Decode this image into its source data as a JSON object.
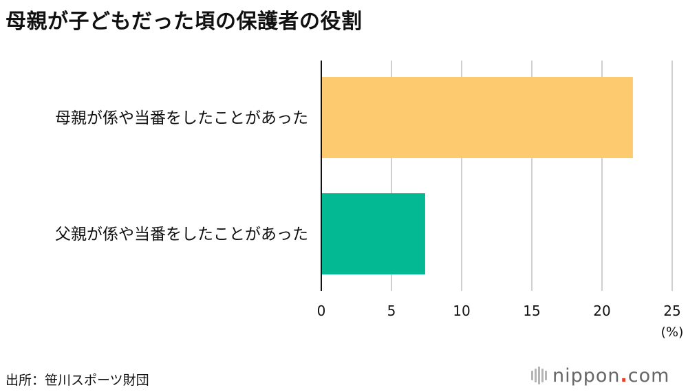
{
  "page": {
    "title": "母親が子どもだった頃の保護者の役割",
    "source": "出所：笹川スポーツ財団",
    "logo": {
      "name": "nippon",
      "dot": ".",
      "tld": "com"
    }
  },
  "chart_data": {
    "type": "bar",
    "orientation": "horizontal",
    "title": "母親が子どもだった頃の保護者の役割",
    "categories": [
      "母親が係や当番をしたことがあった",
      "父親が係や当番をしたことがあった"
    ],
    "values": [
      22.2,
      7.4
    ],
    "colors": [
      "#fdca70",
      "#02b994"
    ],
    "xlim": [
      0,
      25
    ],
    "xticks": [
      0,
      5,
      10,
      15,
      20,
      25
    ],
    "xunit": "(%)",
    "grid": true,
    "legend": "none"
  }
}
